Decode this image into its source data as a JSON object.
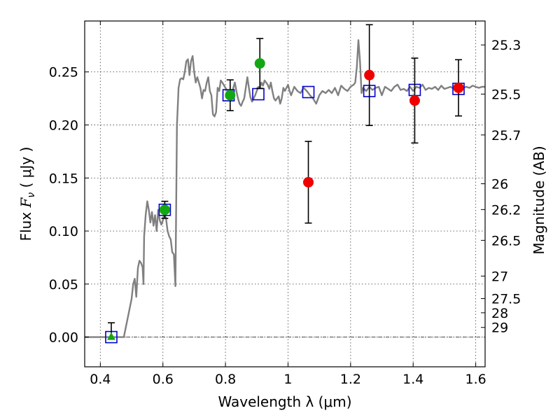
{
  "chart_data": {
    "type": "scatter",
    "title": "",
    "xlabel": "Wavelength  λ (μm)",
    "ylabel_prefix": "Flux ",
    "ylabel_symbol": "F",
    "ylabel_subscript": "ν",
    "ylabel_suffix": "  ( μJy )",
    "ylabel_right": "Magnitude (AB)",
    "xlim": [
      0.35,
      1.63
    ],
    "ylim": [
      -0.028,
      0.298
    ],
    "grid": true,
    "x_ticks": [
      {
        "value": 0.4,
        "label": "0.4"
      },
      {
        "value": 0.6,
        "label": "0.6"
      },
      {
        "value": 0.8,
        "label": "0.8"
      },
      {
        "value": 1.0,
        "label": "1"
      },
      {
        "value": 1.2,
        "label": "1.2"
      },
      {
        "value": 1.4,
        "label": "1.4"
      },
      {
        "value": 1.6,
        "label": "1.6"
      }
    ],
    "y_ticks": [
      {
        "value": 0.0,
        "label": "0.00"
      },
      {
        "value": 0.05,
        "label": "0.05"
      },
      {
        "value": 0.1,
        "label": "0.10"
      },
      {
        "value": 0.15,
        "label": "0.15"
      },
      {
        "value": 0.2,
        "label": "0.20"
      },
      {
        "value": 0.25,
        "label": "0.25"
      }
    ],
    "right_ticks": [
      {
        "mag": 25.3,
        "label": "25.3"
      },
      {
        "mag": 25.5,
        "label": "25.5"
      },
      {
        "mag": 25.7,
        "label": "25.7"
      },
      {
        "mag": 26.0,
        "label": "26"
      },
      {
        "mag": 26.2,
        "label": "26.2"
      },
      {
        "mag": 26.5,
        "label": "26.5"
      },
      {
        "mag": 27.0,
        "label": "27"
      },
      {
        "mag": 27.5,
        "label": "27.5"
      },
      {
        "mag": 28.0,
        "label": "28"
      },
      {
        "mag": 29.0,
        "label": "29"
      }
    ],
    "series": [
      {
        "kind": "line",
        "color": "#808080",
        "points": [
          [
            0.35,
            0.0
          ],
          [
            0.475,
            0.0
          ],
          [
            0.5,
            0.036
          ],
          [
            0.505,
            0.05
          ],
          [
            0.51,
            0.055
          ],
          [
            0.515,
            0.038
          ],
          [
            0.52,
            0.065
          ],
          [
            0.525,
            0.072
          ],
          [
            0.53,
            0.07
          ],
          [
            0.535,
            0.066
          ],
          [
            0.538,
            0.05
          ],
          [
            0.54,
            0.095
          ],
          [
            0.545,
            0.115
          ],
          [
            0.55,
            0.128
          ],
          [
            0.555,
            0.12
          ],
          [
            0.56,
            0.108
          ],
          [
            0.565,
            0.118
          ],
          [
            0.57,
            0.105
          ],
          [
            0.575,
            0.115
          ],
          [
            0.58,
            0.1
          ],
          [
            0.585,
            0.12
          ],
          [
            0.59,
            0.11
          ],
          [
            0.595,
            0.106
          ],
          [
            0.6,
            0.11
          ],
          [
            0.605,
            0.116
          ],
          [
            0.61,
            0.112
          ],
          [
            0.615,
            0.1
          ],
          [
            0.62,
            0.095
          ],
          [
            0.625,
            0.092
          ],
          [
            0.63,
            0.08
          ],
          [
            0.635,
            0.078
          ],
          [
            0.64,
            0.048
          ],
          [
            0.645,
            0.2
          ],
          [
            0.65,
            0.235
          ],
          [
            0.655,
            0.243
          ],
          [
            0.66,
            0.244
          ],
          [
            0.665,
            0.243
          ],
          [
            0.67,
            0.25
          ],
          [
            0.675,
            0.26
          ],
          [
            0.68,
            0.262
          ],
          [
            0.685,
            0.247
          ],
          [
            0.69,
            0.26
          ],
          [
            0.695,
            0.265
          ],
          [
            0.7,
            0.25
          ],
          [
            0.705,
            0.24
          ],
          [
            0.71,
            0.245
          ],
          [
            0.72,
            0.235
          ],
          [
            0.725,
            0.225
          ],
          [
            0.73,
            0.233
          ],
          [
            0.735,
            0.232
          ],
          [
            0.74,
            0.24
          ],
          [
            0.745,
            0.245
          ],
          [
            0.75,
            0.232
          ],
          [
            0.755,
            0.228
          ],
          [
            0.76,
            0.21
          ],
          [
            0.765,
            0.208
          ],
          [
            0.77,
            0.212
          ],
          [
            0.775,
            0.235
          ],
          [
            0.78,
            0.232
          ],
          [
            0.785,
            0.242
          ],
          [
            0.79,
            0.24
          ],
          [
            0.8,
            0.235
          ],
          [
            0.81,
            0.23
          ],
          [
            0.82,
            0.228
          ],
          [
            0.825,
            0.235
          ],
          [
            0.83,
            0.24
          ],
          [
            0.835,
            0.232
          ],
          [
            0.84,
            0.225
          ],
          [
            0.845,
            0.22
          ],
          [
            0.85,
            0.218
          ],
          [
            0.855,
            0.222
          ],
          [
            0.86,
            0.225
          ],
          [
            0.865,
            0.235
          ],
          [
            0.87,
            0.245
          ],
          [
            0.875,
            0.235
          ],
          [
            0.88,
            0.226
          ],
          [
            0.885,
            0.222
          ],
          [
            0.89,
            0.225
          ],
          [
            0.895,
            0.228
          ],
          [
            0.9,
            0.232
          ],
          [
            0.905,
            0.236
          ],
          [
            0.91,
            0.235
          ],
          [
            0.915,
            0.24
          ],
          [
            0.92,
            0.237
          ],
          [
            0.925,
            0.242
          ],
          [
            0.93,
            0.24
          ],
          [
            0.935,
            0.238
          ],
          [
            0.94,
            0.234
          ],
          [
            0.945,
            0.24
          ],
          [
            0.95,
            0.232
          ],
          [
            0.955,
            0.225
          ],
          [
            0.96,
            0.223
          ],
          [
            0.965,
            0.225
          ],
          [
            0.97,
            0.227
          ],
          [
            0.975,
            0.22
          ],
          [
            0.98,
            0.225
          ],
          [
            0.985,
            0.235
          ],
          [
            0.99,
            0.232
          ],
          [
            0.995,
            0.235
          ],
          [
            1.0,
            0.238
          ],
          [
            1.005,
            0.232
          ],
          [
            1.01,
            0.228
          ],
          [
            1.015,
            0.232
          ],
          [
            1.02,
            0.236
          ],
          [
            1.03,
            0.232
          ],
          [
            1.04,
            0.23
          ],
          [
            1.05,
            0.235
          ],
          [
            1.06,
            0.232
          ],
          [
            1.07,
            0.228
          ],
          [
            1.08,
            0.225
          ],
          [
            1.09,
            0.22
          ],
          [
            1.1,
            0.228
          ],
          [
            1.11,
            0.232
          ],
          [
            1.12,
            0.23
          ],
          [
            1.13,
            0.233
          ],
          [
            1.14,
            0.23
          ],
          [
            1.15,
            0.235
          ],
          [
            1.16,
            0.228
          ],
          [
            1.17,
            0.237
          ],
          [
            1.18,
            0.234
          ],
          [
            1.19,
            0.232
          ],
          [
            1.2,
            0.236
          ],
          [
            1.21,
            0.238
          ],
          [
            1.215,
            0.24
          ],
          [
            1.22,
            0.255
          ],
          [
            1.225,
            0.28
          ],
          [
            1.23,
            0.26
          ],
          [
            1.235,
            0.23
          ],
          [
            1.24,
            0.235
          ],
          [
            1.25,
            0.232
          ],
          [
            1.26,
            0.236
          ],
          [
            1.27,
            0.233
          ],
          [
            1.28,
            0.235
          ],
          [
            1.29,
            0.236
          ],
          [
            1.3,
            0.228
          ],
          [
            1.31,
            0.236
          ],
          [
            1.32,
            0.234
          ],
          [
            1.33,
            0.232
          ],
          [
            1.34,
            0.236
          ],
          [
            1.35,
            0.238
          ],
          [
            1.36,
            0.233
          ],
          [
            1.37,
            0.234
          ],
          [
            1.38,
            0.232
          ],
          [
            1.39,
            0.236
          ],
          [
            1.4,
            0.232
          ],
          [
            1.41,
            0.236
          ],
          [
            1.42,
            0.235
          ],
          [
            1.43,
            0.238
          ],
          [
            1.44,
            0.233
          ],
          [
            1.45,
            0.235
          ],
          [
            1.46,
            0.234
          ],
          [
            1.47,
            0.236
          ],
          [
            1.48,
            0.233
          ],
          [
            1.49,
            0.237
          ],
          [
            1.5,
            0.234
          ],
          [
            1.51,
            0.235
          ],
          [
            1.52,
            0.236
          ],
          [
            1.53,
            0.234
          ],
          [
            1.54,
            0.235
          ],
          [
            1.55,
            0.236
          ],
          [
            1.56,
            0.235
          ],
          [
            1.57,
            0.236
          ],
          [
            1.58,
            0.235
          ],
          [
            1.59,
            0.237
          ],
          [
            1.6,
            0.236
          ],
          [
            1.61,
            0.235
          ],
          [
            1.62,
            0.236
          ],
          [
            1.63,
            0.236
          ]
        ]
      },
      {
        "kind": "open-square",
        "color": "#0000cc",
        "points": [
          [
            0.435,
            0.0
          ],
          [
            0.606,
            0.12
          ],
          [
            0.81,
            0.228
          ],
          [
            0.905,
            0.229
          ],
          [
            1.065,
            0.231
          ],
          [
            1.26,
            0.232
          ],
          [
            1.405,
            0.233
          ],
          [
            1.545,
            0.234
          ]
        ]
      },
      {
        "kind": "filled-circle",
        "color": "#13a813",
        "points": [
          {
            "x": 0.606,
            "y": 0.12,
            "err": 0.008
          },
          {
            "x": 0.815,
            "y": 0.228,
            "err": 0.0145
          },
          {
            "x": 0.91,
            "y": 0.258,
            "err": 0.0235
          }
        ]
      },
      {
        "kind": "filled-circle",
        "color": "#ee0000",
        "points": [
          {
            "x": 1.065,
            "y": 0.146,
            "err": 0.0385
          },
          {
            "x": 1.26,
            "y": 0.247,
            "err": 0.0475
          },
          {
            "x": 1.405,
            "y": 0.223,
            "err": 0.04
          },
          {
            "x": 1.545,
            "y": 0.235,
            "err": 0.0265
          }
        ]
      },
      {
        "kind": "upper-limit",
        "color": "#13a813",
        "points": [
          {
            "x": 0.435,
            "y": 0.0,
            "upper": 0.0135
          }
        ]
      }
    ]
  }
}
